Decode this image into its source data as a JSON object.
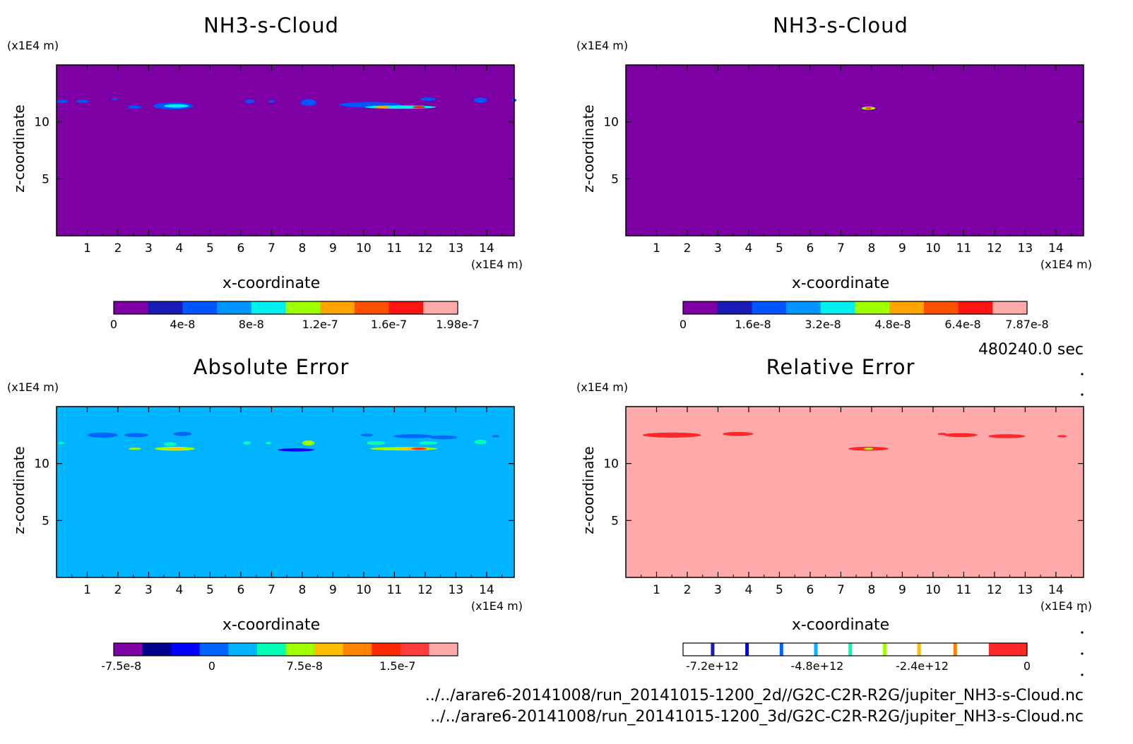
{
  "figure": {
    "time_label": "480240.0 sec",
    "file_paths": [
      "../../arare6-20141008/run_20141015-1200_2d//G2C-C2R-R2G/jupiter_NH3-s-Cloud.nc",
      "../../arare6-20141008/run_20141015-1200_3d/G2C-C2R-R2G/jupiter_NH3-s-Cloud.nc"
    ]
  },
  "chart_data": [
    {
      "type": "heatmap",
      "title": "NH3-s-Cloud",
      "xlabel": "x-coordinate",
      "ylabel": "z-coordinate",
      "x_unit": "(x1E4 m)",
      "y_unit": "(x1E4 m)",
      "xlim": [
        0,
        14.9
      ],
      "ylim": [
        0,
        15
      ],
      "x_ticks": [
        "1",
        "2",
        "3",
        "4",
        "5",
        "6",
        "7",
        "8",
        "9",
        "10",
        "11",
        "12",
        "13",
        "14"
      ],
      "y_ticks": [
        "5",
        "10"
      ],
      "background_color": "#7d00a5",
      "colorbar": {
        "colors": [
          "#7d00a5",
          "#1a1ab4",
          "#0055ff",
          "#0096ff",
          "#00f0f0",
          "#a0ff00",
          "#ffa500",
          "#ff5000",
          "#ff1414",
          "#ffaaaa"
        ],
        "tick_labels": [
          "0",
          "4e-8",
          "8e-8",
          "1.2e-7",
          "1.6e-7",
          "1.98e-7"
        ],
        "tick_positions": [
          0,
          0.2,
          0.4,
          0.6,
          0.8,
          1.0
        ]
      },
      "features": [
        {
          "x": 0.2,
          "z": 11.8,
          "w": 0.35,
          "h": 0.3,
          "color": "#0055ff"
        },
        {
          "x": 0.85,
          "z": 11.8,
          "w": 0.4,
          "h": 0.3,
          "color": "#0055ff"
        },
        {
          "x": 1.9,
          "z": 12.0,
          "w": 0.2,
          "h": 0.2,
          "color": "#0055ff"
        },
        {
          "x": 2.55,
          "z": 11.3,
          "w": 0.45,
          "h": 0.3,
          "color": "#0055ff"
        },
        {
          "x": 3.8,
          "z": 11.4,
          "w": 1.3,
          "h": 0.6,
          "color": "#0055ff"
        },
        {
          "x": 3.9,
          "z": 11.4,
          "w": 0.8,
          "h": 0.3,
          "color": "#00f0f0"
        },
        {
          "x": 6.3,
          "z": 11.8,
          "w": 0.3,
          "h": 0.35,
          "color": "#0055ff"
        },
        {
          "x": 7.0,
          "z": 11.8,
          "w": 0.2,
          "h": 0.2,
          "color": "#0055ff"
        },
        {
          "x": 8.2,
          "z": 11.7,
          "w": 0.5,
          "h": 0.6,
          "color": "#0055ff"
        },
        {
          "x": 10.2,
          "z": 11.5,
          "w": 2.0,
          "h": 0.5,
          "color": "#0055ff"
        },
        {
          "x": 11.2,
          "z": 11.3,
          "w": 2.3,
          "h": 0.3,
          "color": "#00f0f0"
        },
        {
          "x": 10.6,
          "z": 11.3,
          "w": 0.5,
          "h": 0.2,
          "color": "#ffa500"
        },
        {
          "x": 11.8,
          "z": 11.3,
          "w": 0.4,
          "h": 0.18,
          "color": "#ff1414"
        },
        {
          "x": 12.1,
          "z": 12.0,
          "w": 0.5,
          "h": 0.3,
          "color": "#0055ff"
        },
        {
          "x": 13.8,
          "z": 11.9,
          "w": 0.45,
          "h": 0.45,
          "color": "#0055ff"
        },
        {
          "x": 14.9,
          "z": 11.9,
          "w": 0.15,
          "h": 0.25,
          "color": "#0055ff"
        }
      ]
    },
    {
      "type": "heatmap",
      "title": "NH3-s-Cloud",
      "xlabel": "x-coordinate",
      "ylabel": "z-coordinate",
      "x_unit": "(x1E4 m)",
      "y_unit": "(x1E4 m)",
      "xlim": [
        0,
        14.9
      ],
      "ylim": [
        0,
        15
      ],
      "x_ticks": [
        "1",
        "2",
        "3",
        "4",
        "5",
        "6",
        "7",
        "8",
        "9",
        "10",
        "11",
        "12",
        "13",
        "14"
      ],
      "y_ticks": [
        "5",
        "10"
      ],
      "background_color": "#7d00a5",
      "colorbar": {
        "colors": [
          "#7d00a5",
          "#1a1ab4",
          "#0055ff",
          "#0096ff",
          "#00f0f0",
          "#a0ff00",
          "#ffa500",
          "#ff5000",
          "#ff1414",
          "#ffaaaa"
        ],
        "tick_labels": [
          "0",
          "1.6e-8",
          "3.2e-8",
          "4.8e-8",
          "6.4e-8",
          "7.87e-8"
        ],
        "tick_positions": [
          0,
          0.2033,
          0.4066,
          0.6099,
          0.8132,
          1.0
        ]
      },
      "features": [
        {
          "x": 7.9,
          "z": 11.2,
          "w": 0.45,
          "h": 0.28,
          "color": "#a0ff00"
        },
        {
          "x": 7.9,
          "z": 11.2,
          "w": 0.2,
          "h": 0.12,
          "color": "#ff5000"
        }
      ]
    },
    {
      "type": "heatmap",
      "title": "Absolute Error",
      "xlabel": "x-coordinate",
      "ylabel": "z-coordinate",
      "x_unit": "(x1E4 m)",
      "y_unit": "(x1E4 m)",
      "xlim": [
        0,
        14.9
      ],
      "ylim": [
        0,
        15
      ],
      "x_ticks": [
        "1",
        "2",
        "3",
        "4",
        "5",
        "6",
        "7",
        "8",
        "9",
        "10",
        "11",
        "12",
        "13",
        "14"
      ],
      "y_ticks": [
        "5",
        "10"
      ],
      "background_color": "#00b4ff",
      "colorbar": {
        "colors": [
          "#7d00a5",
          "#00008c",
          "#0000ff",
          "#0064ff",
          "#00b4ff",
          "#00ffb4",
          "#a0ff00",
          "#ffbe00",
          "#ff8200",
          "#ff2800",
          "#ff3c3c",
          "#ffaaaa"
        ],
        "tick_labels": [
          "-7.5e-8",
          "0",
          "7.5e-8",
          "1.5e-7"
        ],
        "tick_positions": [
          0.022,
          0.285,
          0.555,
          0.825
        ]
      },
      "features": [
        {
          "x": 1.5,
          "z": 12.5,
          "w": 1.0,
          "h": 0.45,
          "color": "#0064ff"
        },
        {
          "x": 2.6,
          "z": 12.5,
          "w": 0.8,
          "h": 0.35,
          "color": "#0064ff"
        },
        {
          "x": 4.1,
          "z": 12.6,
          "w": 0.6,
          "h": 0.35,
          "color": "#0064ff"
        },
        {
          "x": 0.15,
          "z": 11.8,
          "w": 0.2,
          "h": 0.2,
          "color": "#00ffb4"
        },
        {
          "x": 2.55,
          "z": 11.3,
          "w": 0.4,
          "h": 0.2,
          "color": "#a0ff00"
        },
        {
          "x": 3.7,
          "z": 11.7,
          "w": 0.4,
          "h": 0.35,
          "color": "#00ffb4"
        },
        {
          "x": 3.85,
          "z": 11.3,
          "w": 1.3,
          "h": 0.35,
          "color": "#a0ff00"
        },
        {
          "x": 3.9,
          "z": 11.3,
          "w": 0.6,
          "h": 0.18,
          "color": "#ffbe00"
        },
        {
          "x": 6.2,
          "z": 11.8,
          "w": 0.25,
          "h": 0.3,
          "color": "#00ffb4"
        },
        {
          "x": 6.9,
          "z": 11.8,
          "w": 0.2,
          "h": 0.2,
          "color": "#00ffb4"
        },
        {
          "x": 7.8,
          "z": 11.2,
          "w": 1.2,
          "h": 0.28,
          "color": "#0000ff"
        },
        {
          "x": 8.2,
          "z": 11.8,
          "w": 0.4,
          "h": 0.45,
          "color": "#a0ff00"
        },
        {
          "x": 10.4,
          "z": 11.8,
          "w": 0.6,
          "h": 0.35,
          "color": "#00ffb4"
        },
        {
          "x": 10.1,
          "z": 12.5,
          "w": 0.4,
          "h": 0.25,
          "color": "#0064ff"
        },
        {
          "x": 11.6,
          "z": 12.4,
          "w": 1.3,
          "h": 0.35,
          "color": "#0064ff"
        },
        {
          "x": 12.6,
          "z": 12.3,
          "w": 0.9,
          "h": 0.35,
          "color": "#0064ff"
        },
        {
          "x": 11.3,
          "z": 11.3,
          "w": 2.2,
          "h": 0.3,
          "color": "#a0ff00"
        },
        {
          "x": 11.6,
          "z": 11.3,
          "w": 1.1,
          "h": 0.2,
          "color": "#ffbe00"
        },
        {
          "x": 11.8,
          "z": 11.3,
          "w": 0.5,
          "h": 0.12,
          "color": "#ff2800"
        },
        {
          "x": 12.1,
          "z": 11.8,
          "w": 0.6,
          "h": 0.3,
          "color": "#00ffb4"
        },
        {
          "x": 13.8,
          "z": 11.9,
          "w": 0.4,
          "h": 0.4,
          "color": "#00ffb4"
        },
        {
          "x": 14.3,
          "z": 12.4,
          "w": 0.25,
          "h": 0.2,
          "color": "#0064ff"
        }
      ]
    },
    {
      "type": "heatmap",
      "title": "Relative Error",
      "xlabel": "x-coordinate",
      "ylabel": "z-coordinate",
      "x_unit": "(x1E4 m)",
      "y_unit": "(x1E4 m)",
      "xlim": [
        0,
        14.9
      ],
      "ylim": [
        0,
        15
      ],
      "x_ticks": [
        "1",
        "2",
        "3",
        "4",
        "5",
        "6",
        "7",
        "8",
        "9",
        "10",
        "11",
        "12",
        "13",
        "14"
      ],
      "y_ticks": [
        "5",
        "10"
      ],
      "background_color": "#ffaaaa",
      "colorbar": {
        "colors": [
          "#ffffff",
          "#ffffff",
          "#ffffff",
          "#ffffff",
          "#ffffff",
          "#ffffff",
          "#ffffff",
          "#ffffff",
          "#ff2828"
        ],
        "markers": [
          {
            "pos": 0.085,
            "color": "#1a1ab4"
          },
          {
            "pos": 0.185,
            "color": "#0000ff"
          },
          {
            "pos": 0.285,
            "color": "#0064ff"
          },
          {
            "pos": 0.385,
            "color": "#00b4ff"
          },
          {
            "pos": 0.485,
            "color": "#00ffb4"
          },
          {
            "pos": 0.585,
            "color": "#a0ff00"
          },
          {
            "pos": 0.685,
            "color": "#ffbe00"
          },
          {
            "pos": 0.79,
            "color": "#ff8200"
          }
        ],
        "tick_labels": [
          "-7.2e+12",
          "-4.8e+12",
          "-2.4e+12",
          "0"
        ],
        "tick_positions": [
          0.085,
          0.39,
          0.695,
          1.0
        ]
      },
      "features": [
        {
          "x": 1.5,
          "z": 12.5,
          "w": 1.9,
          "h": 0.45,
          "color": "#ff2828"
        },
        {
          "x": 3.65,
          "z": 12.6,
          "w": 1.0,
          "h": 0.35,
          "color": "#ff2828"
        },
        {
          "x": 7.9,
          "z": 11.3,
          "w": 1.3,
          "h": 0.35,
          "color": "#ff2828"
        },
        {
          "x": 7.9,
          "z": 11.3,
          "w": 0.3,
          "h": 0.12,
          "color": "#a0ff00"
        },
        {
          "x": 10.3,
          "z": 12.6,
          "w": 0.3,
          "h": 0.2,
          "color": "#ff2828"
        },
        {
          "x": 10.9,
          "z": 12.5,
          "w": 1.1,
          "h": 0.35,
          "color": "#ff2828"
        },
        {
          "x": 12.4,
          "z": 12.4,
          "w": 1.2,
          "h": 0.35,
          "color": "#ff2828"
        },
        {
          "x": 14.2,
          "z": 12.4,
          "w": 0.3,
          "h": 0.2,
          "color": "#ff2828"
        }
      ]
    }
  ]
}
